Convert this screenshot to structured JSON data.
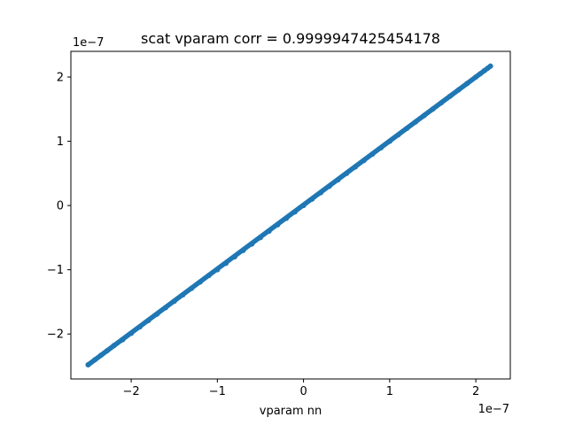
{
  "chart_data": {
    "type": "scatter",
    "title": "scat vparam corr = 0.9999947425454178",
    "xlabel": "vparam nn",
    "ylabel": "",
    "x_offset_text": "1e−7",
    "y_offset_text": "1e−7",
    "xlim": [
      -2.7,
      2.4
    ],
    "ylim": [
      -2.7,
      2.4
    ],
    "xticks": [
      -2,
      -1,
      0,
      1,
      2
    ],
    "yticks": [
      -2,
      -1,
      0,
      1,
      2
    ],
    "xtick_labels": [
      "−2",
      "−1",
      "0",
      "1",
      "2"
    ],
    "ytick_labels": [
      "−2",
      "−1",
      "0",
      "1",
      "2"
    ],
    "grid": false,
    "legend": "none",
    "series": [
      {
        "color": "#1f77b4",
        "segment": {
          "x_range": [
            -2.5,
            2.17
          ],
          "y_range": [
            -2.48,
            2.17
          ],
          "points": [
            [
              -2.5,
              -2.48
            ],
            [
              -2.42,
              -2.4
            ],
            [
              -2.35,
              -2.33
            ],
            [
              -2.28,
              -2.26
            ],
            [
              -2.2,
              -2.18
            ],
            [
              -2.1,
              -2.09
            ],
            [
              -2.0,
              -1.99
            ],
            [
              -1.9,
              -1.89
            ],
            [
              -1.8,
              -1.79
            ],
            [
              -1.7,
              -1.69
            ],
            [
              -1.6,
              -1.59
            ],
            [
              -1.5,
              -1.49
            ],
            [
              -1.4,
              -1.39
            ],
            [
              -1.3,
              -1.29
            ],
            [
              -1.2,
              -1.19
            ],
            [
              -1.1,
              -1.09
            ],
            [
              -1.0,
              -1.0
            ],
            [
              -0.9,
              -0.9
            ],
            [
              -0.8,
              -0.8
            ],
            [
              -0.7,
              -0.7
            ],
            [
              -0.6,
              -0.6
            ],
            [
              -0.5,
              -0.5
            ],
            [
              -0.4,
              -0.4
            ],
            [
              -0.3,
              -0.3
            ],
            [
              -0.2,
              -0.2
            ],
            [
              -0.1,
              -0.1
            ],
            [
              0.0,
              0.0
            ],
            [
              0.1,
              0.1
            ],
            [
              0.2,
              0.2
            ],
            [
              0.3,
              0.3
            ],
            [
              0.4,
              0.4
            ],
            [
              0.5,
              0.5
            ],
            [
              0.6,
              0.6
            ],
            [
              0.7,
              0.7
            ],
            [
              0.8,
              0.8
            ],
            [
              0.9,
              0.9
            ],
            [
              1.0,
              1.0
            ],
            [
              1.1,
              1.1
            ],
            [
              1.2,
              1.2
            ],
            [
              1.3,
              1.3
            ],
            [
              1.4,
              1.4
            ],
            [
              1.5,
              1.5
            ],
            [
              1.6,
              1.6
            ],
            [
              1.7,
              1.7
            ],
            [
              1.8,
              1.8
            ],
            [
              1.9,
              1.9
            ],
            [
              2.0,
              2.0
            ],
            [
              2.05,
              2.05
            ],
            [
              2.1,
              2.1
            ],
            [
              2.14,
              2.14
            ],
            [
              2.17,
              2.17
            ]
          ]
        }
      }
    ]
  }
}
